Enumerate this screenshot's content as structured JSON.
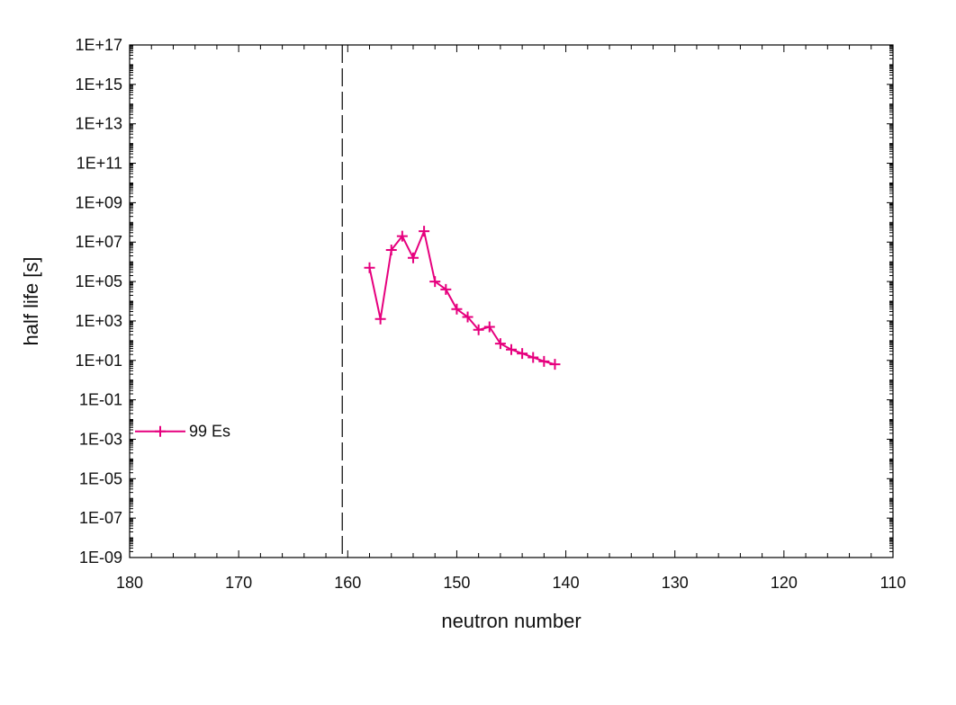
{
  "chart_data": {
    "type": "line",
    "xlabel": "neutron number",
    "ylabel": "half life [s]",
    "x_reversed": true,
    "xlim": [
      180,
      110
    ],
    "ylim_log10": [
      -9,
      17
    ],
    "y_scale": "log",
    "x_ticks": [
      180,
      170,
      160,
      150,
      140,
      130,
      120,
      110
    ],
    "x_tick_labels": [
      "180",
      "170",
      "160",
      "150",
      "140",
      "130",
      "120",
      "110"
    ],
    "y_ticks_log10": [
      17,
      15,
      13,
      11,
      9,
      7,
      5,
      3,
      1,
      -1,
      -3,
      -5,
      -7,
      -9
    ],
    "y_tick_labels": [
      "1E+17",
      "1E+15",
      "1E+13",
      "1E+11",
      "1E+09",
      "1E+07",
      "1E+05",
      "1E+03",
      "1E+01",
      "1E-01",
      "1E-03",
      "1E-05",
      "1E-07",
      "1E-09"
    ],
    "reference_line": {
      "x": 160.5,
      "style": "dashed"
    },
    "legend": {
      "position": "left",
      "entries": [
        "99 Es"
      ]
    },
    "series": [
      {
        "name": "99 Es",
        "color": "#e6007e",
        "marker": "plus",
        "x": [
          158,
          157,
          156,
          155,
          154,
          153,
          152,
          151,
          150,
          149,
          148,
          147,
          146,
          145,
          144,
          143,
          142,
          141
        ],
        "y_log10": [
          5.7,
          3.1,
          6.6,
          7.3,
          6.2,
          7.55,
          5.0,
          4.6,
          3.6,
          3.2,
          2.55,
          2.7,
          1.85,
          1.55,
          1.35,
          1.15,
          0.95,
          0.8
        ]
      }
    ]
  }
}
